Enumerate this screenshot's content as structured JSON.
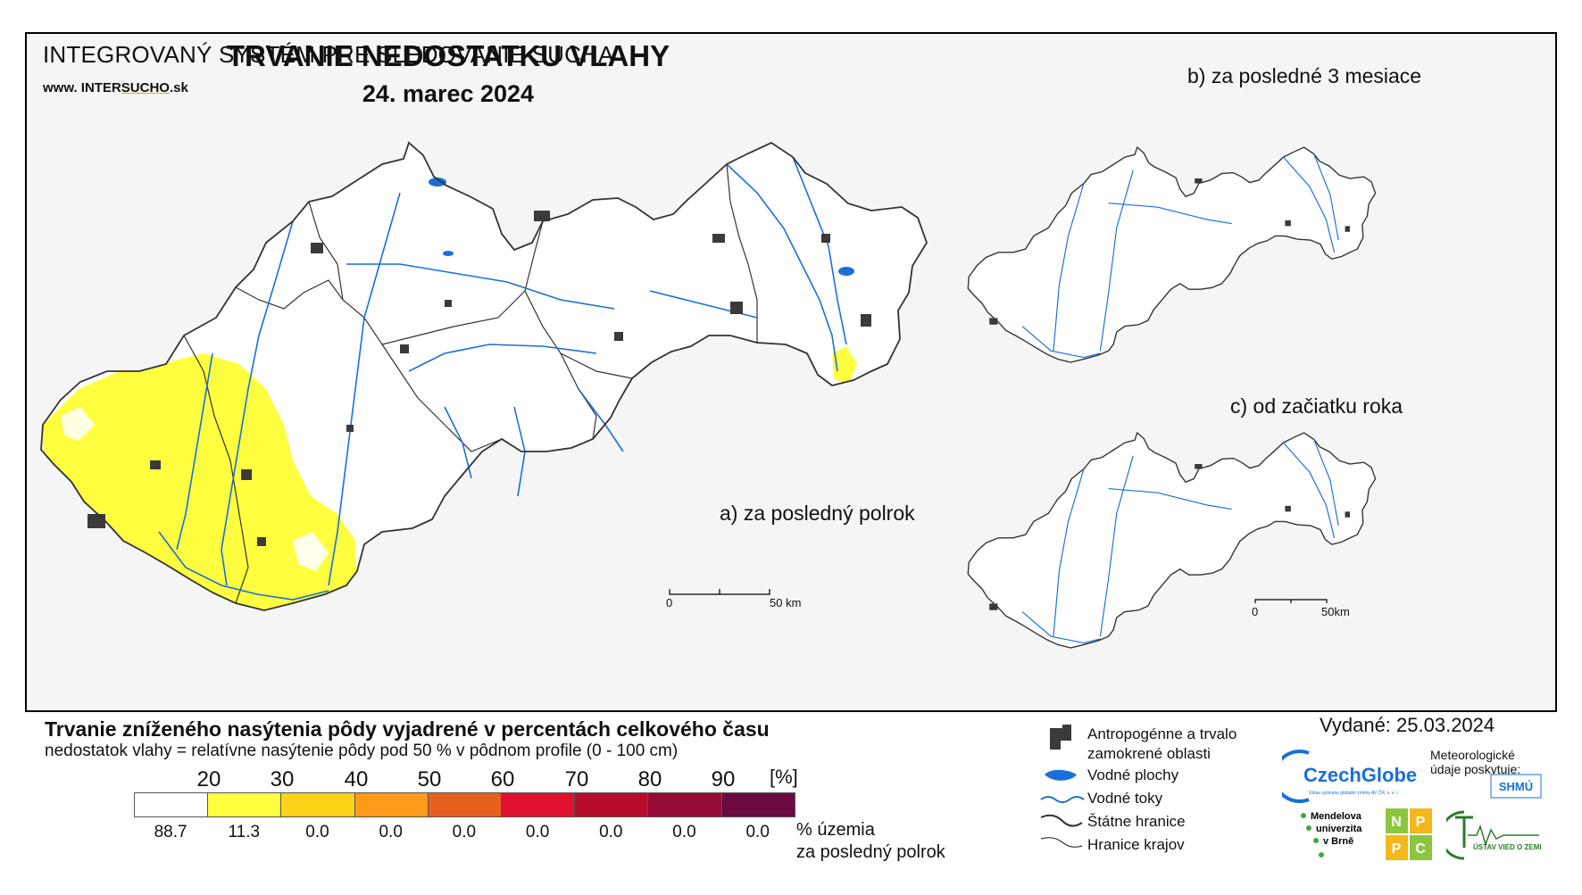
{
  "header": {
    "system_title": "INTEGROVANÝ SYSTÉM PRE SLEDOVANIE SUCHA",
    "website_prefix": "www. INTER",
    "website_highlight": "SUCHO",
    "website_suffix": ".sk",
    "title": "TRVANIE NEDOSTATKU VLAHY",
    "date": "24. marec 2024"
  },
  "maps": {
    "main_label": "a) za posledný polrok",
    "inset_b_label": "b) za posledné 3 mesiace",
    "inset_c_label": "c) od začiatku roka",
    "main_scale": {
      "start": "0",
      "end": "50 km"
    },
    "inset_scale": {
      "start": "0",
      "end": "50km"
    }
  },
  "legend": {
    "title": "Trvanie zníženého nasýtenia pôdy vyjadrené v percentách celkového času",
    "subtitle": "nedostatok vlahy = relatívne nasýtenie pôdy pod 50 % v pôdnom profile (0 - 100 cm)",
    "ticks": [
      "20",
      "30",
      "40",
      "50",
      "60",
      "70",
      "80",
      "90"
    ],
    "unit": "[%]",
    "classes": [
      {
        "color": "#ffffff",
        "percent": "88.7"
      },
      {
        "color": "#ffff40",
        "percent": "11.3"
      },
      {
        "color": "#ffd21a",
        "percent": "0.0"
      },
      {
        "color": "#ff9a1a",
        "percent": "0.0"
      },
      {
        "color": "#e8601e",
        "percent": "0.0"
      },
      {
        "color": "#e01230",
        "percent": "0.0"
      },
      {
        "color": "#b80c2c",
        "percent": "0.0"
      },
      {
        "color": "#960c36",
        "percent": "0.0"
      },
      {
        "color": "#6a0a40",
        "percent": "0.0"
      }
    ],
    "percent_label_line1": "% územia",
    "percent_label_line2": "za posledný polrok",
    "key": [
      {
        "icon": "urban-area-icon",
        "label_line1": "Antropogénne a trvalo",
        "label_line2": "zamokrené oblasti"
      },
      {
        "icon": "water-body-icon",
        "label_line1": "Vodné plochy"
      },
      {
        "icon": "river-icon",
        "label_line1": "Vodné toky"
      },
      {
        "icon": "state-border-icon",
        "label_line1": "Štátne hranice"
      },
      {
        "icon": "region-border-icon",
        "label_line1": "Hranice krajov"
      }
    ]
  },
  "issued": {
    "text": "Vydané: 25.03.2024",
    "czechglobe": "CzechGlobe",
    "czechglobe_sub": "Ústav výzkumu globální změny AV ČR, v. v. i.",
    "meteo_text": "Meteorologické údaje poskytuje:",
    "shmu": "SHMÚ",
    "mendel_line1": "Mendelova",
    "mendel_line2": "univerzita",
    "mendel_line3": "v Brně",
    "nppc": [
      "N",
      "P",
      "P",
      "C"
    ],
    "uvz": "ÚSTAV VIED O ZEMI"
  },
  "colors": {
    "map_background": "#f5f5f5",
    "drought_20_30": "#ffff40",
    "drought_30_40": "#ffd21a",
    "river": "#1a6fd8",
    "urban": "#3a3a3a"
  }
}
